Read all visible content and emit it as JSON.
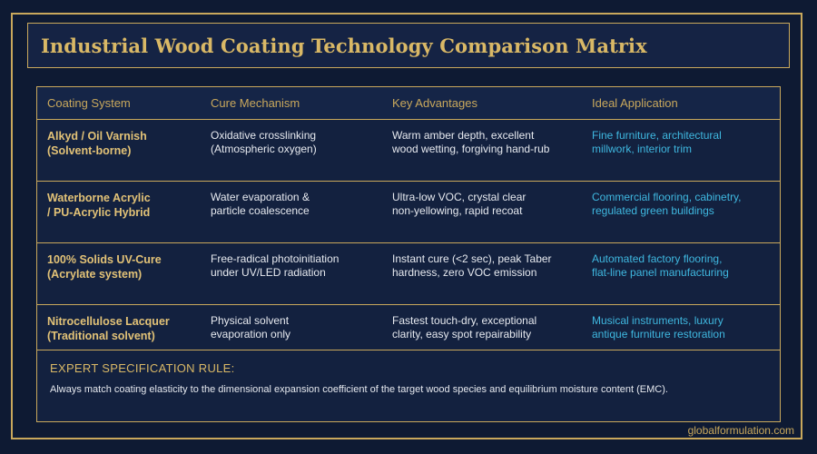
{
  "title": "Industrial Wood Coating Technology Comparison Matrix",
  "table": {
    "headers": [
      "Coating System",
      "Cure Mechanism",
      "Key Advantages",
      "Ideal Application"
    ],
    "rows": [
      {
        "system": [
          "Alkyd / Oil Varnish",
          "(Solvent-borne)"
        ],
        "cure": [
          "Oxidative crosslinking",
          "(Atmospheric oxygen)"
        ],
        "advantages": [
          "Warm amber depth, excellent",
          "wood wetting, forgiving hand-rub"
        ],
        "application": [
          "Fine furniture, architectural",
          "millwork, interior trim"
        ]
      },
      {
        "system": [
          "Waterborne Acrylic",
          "/ PU-Acrylic Hybrid"
        ],
        "cure": [
          "Water evaporation &",
          "particle coalescence"
        ],
        "advantages": [
          "Ultra-low VOC, crystal clear",
          "non-yellowing, rapid recoat"
        ],
        "application": [
          "Commercial flooring, cabinetry,",
          "regulated green buildings"
        ]
      },
      {
        "system": [
          "100% Solids UV-Cure",
          "(Acrylate system)"
        ],
        "cure": [
          "Free-radical photoinitiation",
          "under UV/LED radiation"
        ],
        "advantages": [
          "Instant cure (<2 sec), peak Taber",
          "hardness, zero VOC emission"
        ],
        "application": [
          "Automated factory flooring,",
          "flat-line panel manufacturing"
        ]
      },
      {
        "system": [
          "Nitrocellulose Lacquer",
          "(Traditional solvent)"
        ],
        "cure": [
          "Physical solvent",
          "evaporation only"
        ],
        "advantages": [
          "Fastest touch-dry, exceptional",
          "clarity, easy spot repairability"
        ],
        "application": [
          "Musical instruments, luxury",
          "antique furniture restoration"
        ]
      }
    ]
  },
  "rule": {
    "title": "EXPERT SPECIFICATION RULE:",
    "text": "Always match coating elasticity to the dimensional expansion coefficient of the target wood species and equilibrium moisture content (EMC)."
  },
  "footer": "globalformulation.com",
  "colors": {
    "background": "#0e1a33",
    "gold": "#c9a85c",
    "cyan": "#3fb8e0"
  }
}
